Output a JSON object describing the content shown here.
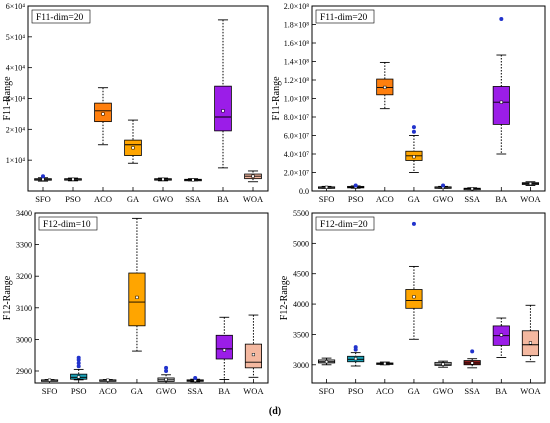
{
  "figure_label": "(d)",
  "chart_data": [
    {
      "type": "boxplot",
      "title": "F11-dim=20",
      "ylabel": "F11-Range",
      "xlabel": "",
      "ylim": [
        0,
        60000
      ],
      "yticks": [
        10000,
        20000,
        30000,
        40000,
        50000,
        60000
      ],
      "ytick_labels": [
        "1×10⁴",
        "2×10⁴",
        "3×10⁴",
        "4×10⁴",
        "5×10⁴",
        "6×10⁴"
      ],
      "categories": [
        "SFO",
        "PSO",
        "ACO",
        "GA",
        "GWO",
        "SSA",
        "BA",
        "WOA"
      ],
      "colors": [
        "#c9c9c9",
        "#ffffff",
        "#ff7f0e",
        "#ffa500",
        "#cdcdcd",
        "#bdbdbd",
        "#9b1de8",
        "#f4b8a0"
      ],
      "boxes": [
        {
          "min": 3200,
          "q1": 3500,
          "median": 3800,
          "q3": 4000,
          "max": 4300,
          "mean": 3800,
          "outliers": [
            4800
          ]
        },
        {
          "min": 3300,
          "q1": 3600,
          "median": 3800,
          "q3": 4000,
          "max": 4200,
          "mean": 3800,
          "outliers": []
        },
        {
          "min": 15000,
          "q1": 22500,
          "median": 26000,
          "q3": 28500,
          "max": 33500,
          "mean": 25000,
          "outliers": []
        },
        {
          "min": 9000,
          "q1": 11500,
          "median": 15000,
          "q3": 16500,
          "max": 23000,
          "mean": 14000,
          "outliers": []
        },
        {
          "min": 3300,
          "q1": 3600,
          "median": 3800,
          "q3": 4000,
          "max": 4200,
          "mean": 3800,
          "outliers": []
        },
        {
          "min": 3300,
          "q1": 3500,
          "median": 3600,
          "q3": 3800,
          "max": 4000,
          "mean": 3600,
          "outliers": []
        },
        {
          "min": 7500,
          "q1": 19500,
          "median": 24000,
          "q3": 34000,
          "max": 55500,
          "mean": 26000,
          "outliers": []
        },
        {
          "min": 3000,
          "q1": 4000,
          "median": 4800,
          "q3": 5500,
          "max": 6500,
          "mean": 4800,
          "outliers": []
        }
      ]
    },
    {
      "type": "boxplot",
      "title": "F11-dim=20",
      "ylabel": "F11-Range",
      "xlabel": "",
      "ylim": [
        0,
        200000000
      ],
      "yticks": [
        0,
        20000000,
        40000000,
        60000000,
        80000000,
        100000000,
        120000000,
        140000000,
        160000000,
        180000000,
        200000000
      ],
      "ytick_labels": [
        "0.0",
        "2.0×10⁷",
        "4.0×10⁷",
        "6.0×10⁷",
        "8.0×10⁷",
        "1.0×10⁸",
        "1.2×10⁸",
        "1.4×10⁸",
        "1.6×10⁸",
        "1.8×10⁸",
        "2.0×10⁸"
      ],
      "categories": [
        "SFO",
        "PSO",
        "ACO",
        "GA",
        "GWO",
        "SSA",
        "BA",
        "WOA"
      ],
      "colors": [
        "#c9c9c9",
        "#d6d6d6",
        "#ff7f0e",
        "#ffa500",
        "#cdcdcd",
        "#bdbdbd",
        "#9b1de8",
        "#9a9a9a"
      ],
      "boxes": [
        {
          "min": 3000000,
          "q1": 3500000,
          "median": 4000000,
          "q3": 4500000,
          "max": 5000000,
          "mean": 4000000,
          "outliers": []
        },
        {
          "min": 3000000,
          "q1": 3800000,
          "median": 4300000,
          "q3": 5000000,
          "max": 5500000,
          "mean": 4300000,
          "outliers": [
            6000000
          ]
        },
        {
          "min": 89000000,
          "q1": 104000000,
          "median": 112000000,
          "q3": 121000000,
          "max": 139000000,
          "mean": 112000000,
          "outliers": []
        },
        {
          "min": 20000000,
          "q1": 33000000,
          "median": 38000000,
          "q3": 43000000,
          "max": 60000000,
          "mean": 37000000,
          "outliers": [
            64000000,
            69000000
          ]
        },
        {
          "min": 3000000,
          "q1": 3500000,
          "median": 4000000,
          "q3": 4500000,
          "max": 5000000,
          "mean": 4000000,
          "outliers": [
            6000000
          ]
        },
        {
          "min": 1500000,
          "q1": 2000000,
          "median": 2500000,
          "q3": 3000000,
          "max": 3500000,
          "mean": 2500000,
          "outliers": []
        },
        {
          "min": 40000000,
          "q1": 72000000,
          "median": 96000000,
          "q3": 113000000,
          "max": 147000000,
          "mean": 96000000,
          "outliers": [
            186000000
          ]
        },
        {
          "min": 6000000,
          "q1": 7000000,
          "median": 8000000,
          "q3": 9000000,
          "max": 10000000,
          "mean": 8000000,
          "outliers": []
        }
      ]
    },
    {
      "type": "boxplot",
      "title": "F12-dim=10",
      "ylabel": "F12-Range",
      "xlabel": "",
      "ylim": [
        2862,
        3400
      ],
      "yticks": [
        2900,
        3000,
        3100,
        3200,
        3300,
        3400
      ],
      "ytick_labels": [
        "2900",
        "3000",
        "3100",
        "3200",
        "3300",
        "3400"
      ],
      "categories": [
        "SFO",
        "PSO",
        "ACO",
        "GA",
        "GWO",
        "SSA",
        "BA",
        "WOA"
      ],
      "colors": [
        "#c9c9c9",
        "#1a9fb5",
        "#bdbdbd",
        "#ffa500",
        "#cdcdcd",
        "#7f7f7f",
        "#9b1de8",
        "#f4b8a0"
      ],
      "boxes": [
        {
          "min": 2869,
          "q1": 2870,
          "median": 2871,
          "q3": 2872,
          "max": 2873,
          "mean": 2871,
          "outliers": []
        },
        {
          "min": 2872,
          "q1": 2874,
          "median": 2880,
          "q3": 2890,
          "max": 2905,
          "mean": 2881,
          "outliers": [
            2915,
            2925,
            2935,
            2942
          ]
        },
        {
          "min": 2869,
          "q1": 2870,
          "median": 2871,
          "q3": 2872,
          "max": 2873,
          "mean": 2871,
          "outliers": []
        },
        {
          "min": 2963,
          "q1": 3043,
          "median": 3118,
          "q3": 3210,
          "max": 3383,
          "mean": 3133,
          "outliers": []
        },
        {
          "min": 2862,
          "q1": 2867,
          "median": 2872,
          "q3": 2878,
          "max": 2888,
          "mean": 2873,
          "outliers": [
            2900,
            2910
          ]
        },
        {
          "min": 2866,
          "q1": 2868,
          "median": 2870,
          "q3": 2872,
          "max": 2874,
          "mean": 2870,
          "outliers": [
            2878
          ]
        },
        {
          "min": 2873,
          "q1": 2938,
          "median": 2970,
          "q3": 3013,
          "max": 3070,
          "mean": 2966,
          "outliers": []
        },
        {
          "min": 2880,
          "q1": 2910,
          "median": 2928,
          "q3": 2985,
          "max": 3077,
          "mean": 2952,
          "outliers": []
        }
      ]
    },
    {
      "type": "boxplot",
      "title": "F12-dim=20",
      "ylabel": "F12-Range",
      "xlabel": "",
      "ylim": [
        2700,
        5500
      ],
      "yticks": [
        3000,
        3500,
        4000,
        4500,
        5000,
        5500
      ],
      "ytick_labels": [
        "3000",
        "3500",
        "4000",
        "4500",
        "5000",
        "5500"
      ],
      "categories": [
        "SFO",
        "PSO",
        "ACO",
        "GA",
        "GWO",
        "SSA",
        "BA",
        "WOA"
      ],
      "colors": [
        "#c9c9c9",
        "#1a9fb5",
        "#bdbdbd",
        "#ffa500",
        "#cdcdcd",
        "#8b1a1a",
        "#9b1de8",
        "#f4b8a0"
      ],
      "boxes": [
        {
          "min": 3000,
          "q1": 3030,
          "median": 3050,
          "q3": 3080,
          "max": 3110,
          "mean": 3050,
          "outliers": []
        },
        {
          "min": 2980,
          "q1": 3050,
          "median": 3090,
          "q3": 3140,
          "max": 3200,
          "mean": 3100,
          "outliers": [
            3250,
            3290
          ]
        },
        {
          "min": 3000,
          "q1": 3010,
          "median": 3020,
          "q3": 3030,
          "max": 3045,
          "mean": 3020,
          "outliers": []
        },
        {
          "min": 3420,
          "q1": 3930,
          "median": 4060,
          "q3": 4240,
          "max": 4620,
          "mean": 4120,
          "outliers": [
            5320
          ]
        },
        {
          "min": 2960,
          "q1": 2990,
          "median": 3010,
          "q3": 3040,
          "max": 3060,
          "mean": 3010,
          "outliers": []
        },
        {
          "min": 2950,
          "q1": 3000,
          "median": 3030,
          "q3": 3070,
          "max": 3100,
          "mean": 3030,
          "outliers": [
            3220
          ]
        },
        {
          "min": 3120,
          "q1": 3320,
          "median": 3480,
          "q3": 3640,
          "max": 3770,
          "mean": 3490,
          "outliers": []
        },
        {
          "min": 3050,
          "q1": 3150,
          "median": 3330,
          "q3": 3560,
          "max": 3980,
          "mean": 3360,
          "outliers": []
        }
      ]
    }
  ]
}
